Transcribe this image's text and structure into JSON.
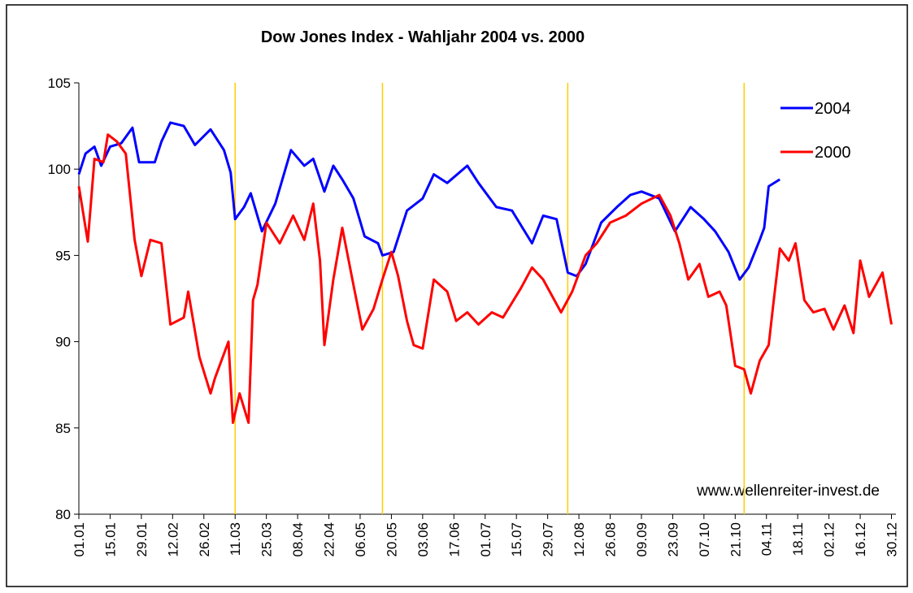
{
  "chart_data": {
    "type": "line",
    "title": "Dow Jones Index - Wahljahr 2004 vs. 2000",
    "annotation": "www.wellenreiter-invest.de",
    "xlim": [
      0,
      366
    ],
    "ylim": [
      80,
      105
    ],
    "yticks": [
      80,
      85,
      90,
      95,
      100,
      105
    ],
    "xticks": [
      {
        "value": 0,
        "label": "01.01"
      },
      {
        "value": 14,
        "label": "15.01"
      },
      {
        "value": 28,
        "label": "29.01"
      },
      {
        "value": 42,
        "label": "12.02"
      },
      {
        "value": 56,
        "label": "26.02"
      },
      {
        "value": 70,
        "label": "11.03"
      },
      {
        "value": 84,
        "label": "25.03"
      },
      {
        "value": 98,
        "label": "08.04"
      },
      {
        "value": 112,
        "label": "22.04"
      },
      {
        "value": 126,
        "label": "06.05"
      },
      {
        "value": 140,
        "label": "20.05"
      },
      {
        "value": 154,
        "label": "03.06"
      },
      {
        "value": 168,
        "label": "17.06"
      },
      {
        "value": 182,
        "label": "01.07"
      },
      {
        "value": 196,
        "label": "15.07"
      },
      {
        "value": 210,
        "label": "29.07"
      },
      {
        "value": 224,
        "label": "12.08"
      },
      {
        "value": 238,
        "label": "26.08"
      },
      {
        "value": 252,
        "label": "09.09"
      },
      {
        "value": 266,
        "label": "23.09"
      },
      {
        "value": 280,
        "label": "07.10"
      },
      {
        "value": 294,
        "label": "21.10"
      },
      {
        "value": 308,
        "label": "04.11"
      },
      {
        "value": 322,
        "label": "18.11"
      },
      {
        "value": 336,
        "label": "02.12"
      },
      {
        "value": 350,
        "label": "16.12"
      },
      {
        "value": 364,
        "label": "30.12"
      }
    ],
    "vlines": [
      70,
      136,
      219,
      298
    ],
    "vline_color": "#ffcc00",
    "legend": "upper right",
    "series": [
      {
        "name": "2004",
        "color": "#0000ff",
        "x": [
          0,
          3,
          7,
          10,
          14,
          19,
          24,
          27,
          34,
          37,
          41,
          47,
          52,
          59,
          65,
          68,
          70,
          74,
          77,
          82,
          88,
          95,
          101,
          105,
          110,
          114,
          118,
          123,
          128,
          134,
          136,
          141,
          147,
          154,
          159,
          165,
          174,
          179,
          187,
          194,
          203,
          208,
          214,
          219,
          223,
          227,
          234,
          241,
          247,
          252,
          260,
          267,
          274,
          280,
          285,
          291,
          296,
          300,
          305,
          307,
          309,
          314
        ],
        "values": [
          99.7,
          100.9,
          101.3,
          100.2,
          101.3,
          101.5,
          102.4,
          100.4,
          100.4,
          101.6,
          102.7,
          102.5,
          101.4,
          102.3,
          101.1,
          99.8,
          97.1,
          97.8,
          98.6,
          96.4,
          98,
          101.1,
          100.2,
          100.6,
          98.7,
          100.2,
          99.4,
          98.3,
          96.1,
          95.7,
          95,
          95.2,
          97.6,
          98.3,
          99.7,
          99.2,
          100.2,
          99.2,
          97.8,
          97.6,
          95.7,
          97.3,
          97.1,
          94,
          93.8,
          94.5,
          96.9,
          97.8,
          98.5,
          98.7,
          98.3,
          96.4,
          97.8,
          97.1,
          96.4,
          95.2,
          93.6,
          94.3,
          95.9,
          96.6,
          99,
          99.4
        ]
      },
      {
        "name": "2000",
        "color": "#ff0000",
        "x": [
          0,
          4,
          7,
          11,
          13,
          17,
          21,
          25,
          28,
          32,
          37,
          41,
          47,
          49,
          54,
          59,
          61,
          67,
          69,
          72,
          76,
          78,
          80,
          84,
          90,
          96,
          101,
          105,
          108,
          110,
          114,
          118,
          123,
          127,
          132,
          136,
          140,
          143,
          147,
          150,
          154,
          159,
          165,
          169,
          174,
          179,
          185,
          190,
          198,
          203,
          208,
          216,
          221,
          227,
          232,
          238,
          245,
          252,
          260,
          265,
          269,
          273,
          278,
          282,
          287,
          290,
          294,
          298,
          301,
          305,
          309,
          311,
          314,
          318,
          321,
          325,
          329,
          334,
          338,
          343,
          347,
          350,
          354,
          360,
          364
        ],
        "values": [
          99,
          95.8,
          100.6,
          100.4,
          102,
          101.6,
          100.9,
          95.9,
          93.8,
          95.9,
          95.7,
          91,
          91.4,
          92.9,
          89.1,
          87,
          87.9,
          90,
          85.3,
          87,
          85.3,
          92.4,
          93.3,
          96.9,
          95.7,
          97.3,
          95.9,
          98,
          94.7,
          89.8,
          93.6,
          96.6,
          93.3,
          90.7,
          91.9,
          93.6,
          95.2,
          93.8,
          91.2,
          89.8,
          89.6,
          93.6,
          92.9,
          91.2,
          91.7,
          91,
          91.7,
          91.4,
          93.1,
          94.3,
          93.6,
          91.7,
          92.9,
          95,
          95.7,
          96.9,
          97.3,
          98,
          98.5,
          97.3,
          95.7,
          93.6,
          94.5,
          92.6,
          92.9,
          92.1,
          88.6,
          88.4,
          87,
          88.9,
          89.8,
          92.1,
          95.4,
          94.7,
          95.7,
          92.4,
          91.7,
          91.9,
          90.7,
          92.1,
          90.5,
          94.7,
          92.6,
          94,
          91
        ]
      }
    ]
  }
}
